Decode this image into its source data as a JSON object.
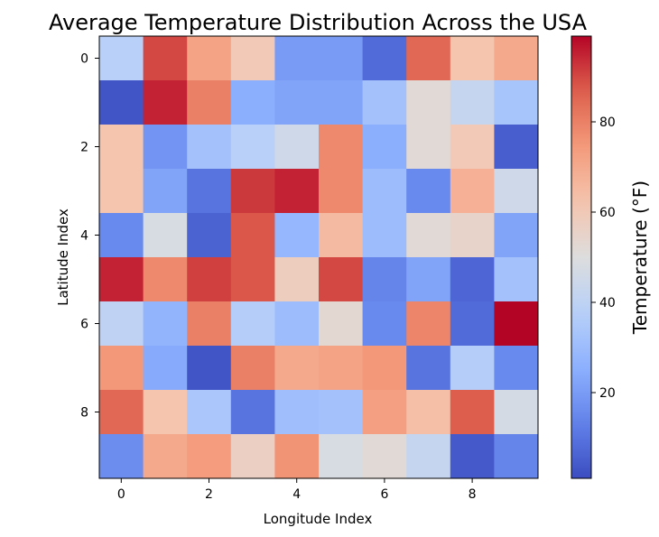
{
  "chart_data": {
    "type": "heatmap",
    "title": "Average Temperature Distribution Across the USA",
    "xlabel": "Longitude Index",
    "ylabel": "Latitude Index",
    "colorbar_label": "Temperature (°F)",
    "colormap": "coolwarm",
    "vrange": [
      1,
      99
    ],
    "x_ticks": [
      "0",
      "2",
      "4",
      "6",
      "8"
    ],
    "y_ticks": [
      "0",
      "2",
      "4",
      "6",
      "8"
    ],
    "colorbar_ticks": [
      "20",
      "40",
      "60",
      "80"
    ],
    "values": [
      [
        38,
        90,
        72,
        60,
        20,
        20,
        8,
        85,
        62,
        70
      ],
      [
        3,
        95,
        80,
        25,
        22,
        22,
        32,
        52,
        42,
        33
      ],
      [
        62,
        18,
        32,
        38,
        45,
        78,
        25,
        52,
        60,
        5
      ],
      [
        62,
        22,
        10,
        92,
        95,
        78,
        30,
        15,
        68,
        45
      ],
      [
        15,
        48,
        6,
        88,
        28,
        65,
        30,
        52,
        55,
        22
      ],
      [
        95,
        78,
        91,
        88,
        58,
        90,
        14,
        22,
        7,
        32
      ],
      [
        40,
        27,
        80,
        37,
        30,
        53,
        15,
        79,
        8,
        99
      ],
      [
        75,
        24,
        3,
        80,
        70,
        72,
        75,
        10,
        37,
        15
      ],
      [
        85,
        62,
        34,
        10,
        31,
        32,
        73,
        64,
        87,
        47
      ],
      [
        16,
        70,
        74,
        57,
        76,
        48,
        52,
        42,
        4,
        14
      ]
    ]
  }
}
